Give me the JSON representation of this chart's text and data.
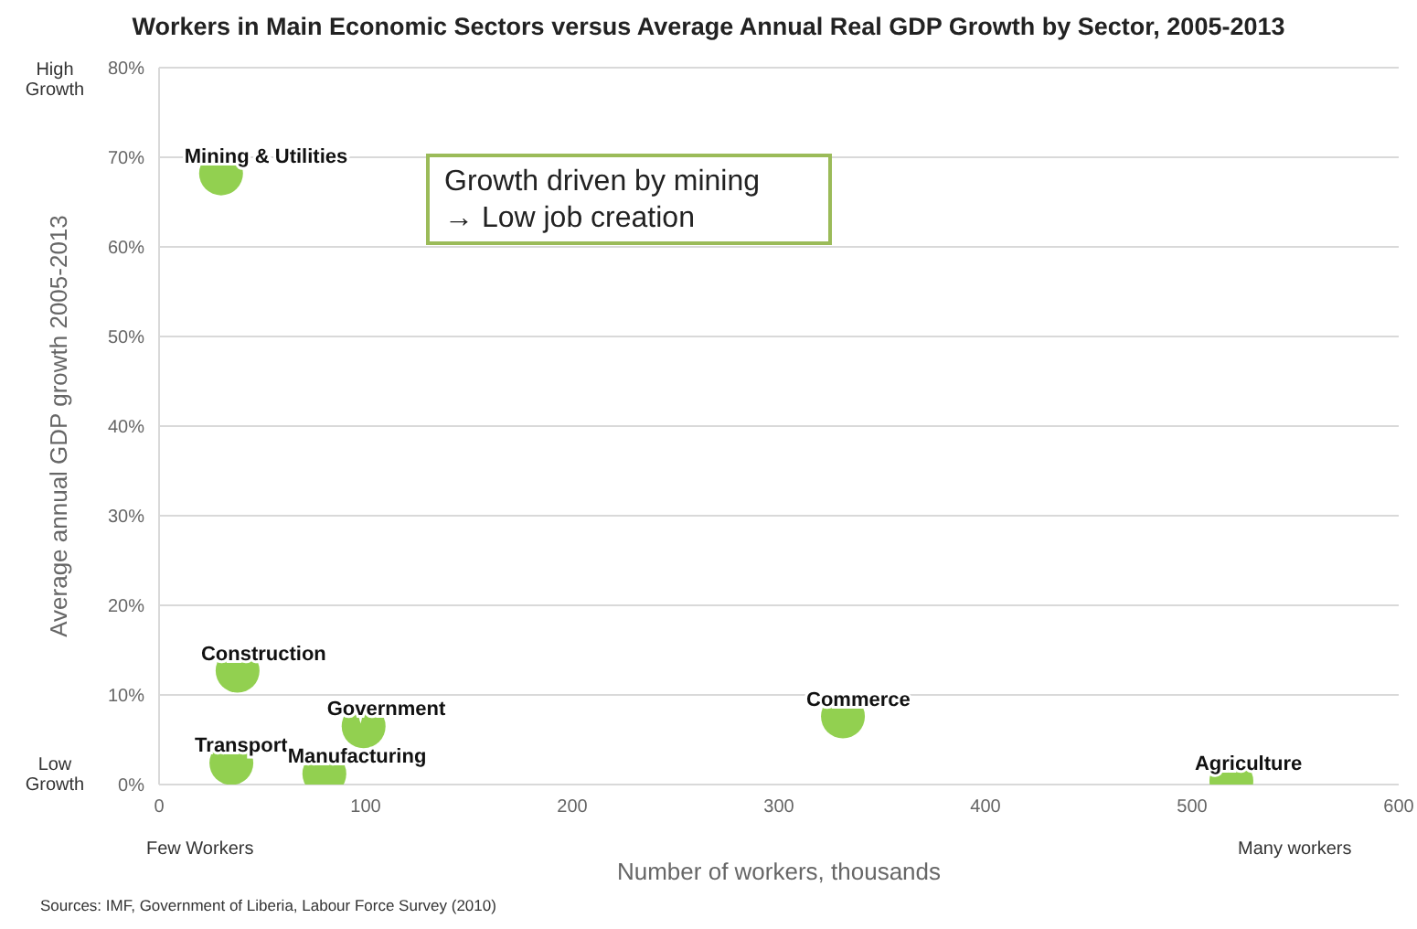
{
  "chart_data": {
    "type": "scatter",
    "title": "Workers in Main Economic Sectors versus Average Annual Real GDP Growth by Sector, 2005-2013",
    "xlabel": "Number of workers, thousands",
    "ylabel": "Average annual GDP growth 2005-2013",
    "series": [
      {
        "name": "Mining & Utilities",
        "color": "#92d050",
        "x": [
          30
        ],
        "values": [
          68.2
        ]
      },
      {
        "name": "Construction",
        "color": "#92d050",
        "x": [
          38
        ],
        "values": [
          12.7
        ]
      },
      {
        "name": "Government",
        "color": "#92d050",
        "x": [
          99
        ],
        "values": [
          6.5
        ]
      },
      {
        "name": "Transport",
        "color": "#92d050",
        "x": [
          35
        ],
        "values": [
          2.4
        ]
      },
      {
        "name": "Manufacturing",
        "color": "#92d050",
        "x": [
          80
        ],
        "values": [
          1.2
        ]
      },
      {
        "name": "Commerce",
        "color": "#92d050",
        "x": [
          331
        ],
        "values": [
          7.6
        ]
      },
      {
        "name": "Agriculture",
        "color": "#92d050",
        "x": [
          519
        ],
        "values": [
          0.4
        ]
      }
    ],
    "xlim": [
      0,
      600
    ],
    "xticks": [
      0,
      100,
      200,
      300,
      400,
      500,
      600
    ],
    "ylim": [
      0,
      80
    ],
    "yticks": [
      {
        "value": 0,
        "label": "0%"
      },
      {
        "value": 10,
        "label": "10%"
      },
      {
        "value": 20,
        "label": "20%"
      },
      {
        "value": 30,
        "label": "30%"
      },
      {
        "value": 40,
        "label": "40%"
      },
      {
        "value": 50,
        "label": "50%"
      },
      {
        "value": 60,
        "label": "60%"
      },
      {
        "value": 70,
        "label": "70%"
      },
      {
        "value": 80,
        "label": "80%"
      }
    ],
    "grid": "y",
    "legend": false,
    "marker": "circle",
    "annotations": [
      "High Growth",
      "Low Growth",
      "Few Workers",
      "Many workers",
      "Growth driven by mining\n→ Low job creation",
      "Sources: IMF, Government of Liberia, Labour Force Survey (2010)"
    ]
  }
}
